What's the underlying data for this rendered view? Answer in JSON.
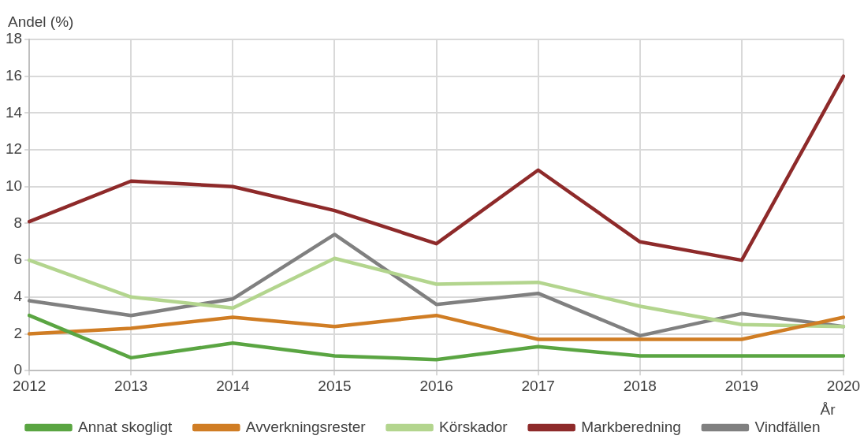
{
  "chart_data": {
    "type": "line",
    "ylabel": "Andel (%)",
    "xlabel": "År",
    "categories": [
      "2012",
      "2013",
      "2014",
      "2015",
      "2016",
      "2017",
      "2018",
      "2019",
      "2020"
    ],
    "ylim": [
      0,
      18
    ],
    "yticks": [
      0,
      2,
      4,
      6,
      8,
      10,
      12,
      14,
      16,
      18
    ],
    "grid": true,
    "legend": "bottom",
    "marker": "none",
    "line_style": "solid",
    "series": [
      {
        "name": "Annat skogligt",
        "color": "#5aa542",
        "values": [
          3.0,
          0.7,
          1.5,
          0.8,
          0.6,
          1.3,
          0.8,
          0.8,
          0.8
        ]
      },
      {
        "name": "Avverkningsrester",
        "color": "#d07d24",
        "values": [
          2.0,
          2.3,
          2.9,
          2.4,
          3.0,
          1.7,
          1.7,
          1.7,
          2.9
        ]
      },
      {
        "name": "Körskador",
        "color": "#b3d58e",
        "values": [
          6.0,
          4.0,
          3.4,
          6.1,
          4.7,
          4.8,
          3.5,
          2.5,
          2.4
        ]
      },
      {
        "name": "Markberedning",
        "color": "#8e2a2a",
        "values": [
          8.1,
          10.3,
          10.0,
          8.7,
          6.9,
          10.9,
          7.0,
          6.0,
          16.0
        ]
      },
      {
        "name": "Vindfällen",
        "color": "#808080",
        "values": [
          3.8,
          3.0,
          3.9,
          7.4,
          3.6,
          4.2,
          1.9,
          3.1,
          2.4
        ]
      }
    ]
  }
}
